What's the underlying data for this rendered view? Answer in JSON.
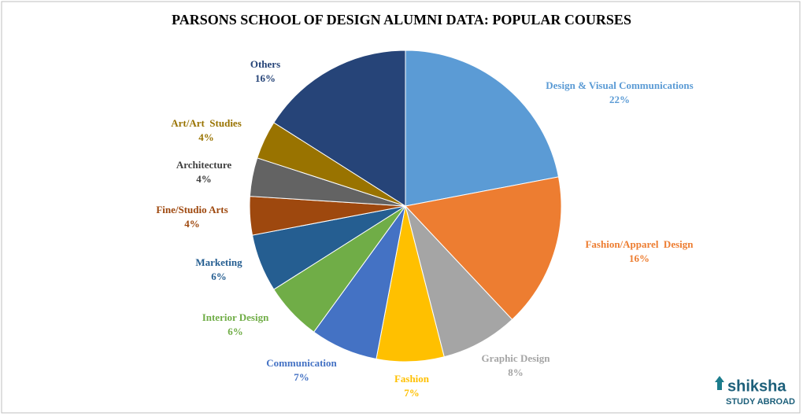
{
  "chart_data": {
    "type": "pie",
    "title": "PARSONS SCHOOL OF DESIGN ALUMNI DATA:  POPULAR COURSES",
    "categories": [
      "Design & Visual Communications",
      "Fashion/Apparel  Design",
      "Graphic Design",
      "Fashion",
      "Communication",
      "Interior Design",
      "Marketing",
      "Fine/Studio Arts",
      "Architecture",
      "Art/Art  Studies",
      "Others"
    ],
    "values": [
      22,
      16,
      8,
      7,
      7,
      6,
      6,
      4,
      4,
      4,
      16
    ],
    "value_labels": [
      "22%",
      "16%",
      "8%",
      "7%",
      "7%",
      "6%",
      "6%",
      "4%",
      "4%",
      "4%",
      "16%"
    ],
    "colors": [
      "#5b9bd5",
      "#ed7d31",
      "#a5a5a5",
      "#ffc000",
      "#4472c4",
      "#70ad47",
      "#255e91",
      "#9e480e",
      "#636363",
      "#997300",
      "#264478"
    ]
  },
  "logo": {
    "name": "shiksha",
    "tagline": "STUDY ABROAD"
  }
}
